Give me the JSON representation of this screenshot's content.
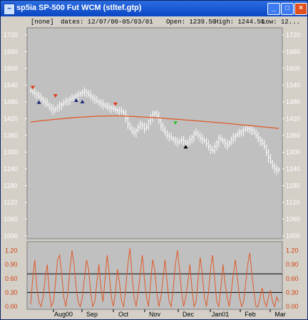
{
  "window": {
    "title": "sp5ia SP-500 Fut   WCM  (stltef.gtp)",
    "buttons": {
      "minimize": "_",
      "maximize": "□",
      "close": "×"
    }
  },
  "infobar": {
    "study": "[none]",
    "dates": "dates: 12/07/00-05/03/01",
    "open": "Open: 1239.50",
    "high": "High: 1244.50",
    "low": "Low: 12..."
  },
  "colors": {
    "panel_bg": "#c0c0c0",
    "price_bars": "#ffffff",
    "moving_average": "#e05a2a",
    "oscillator": "#e05a2a",
    "arrow_red": "#e03a1a",
    "arrow_navy": "#1a2a7a",
    "arrow_green": "#30c030",
    "arrow_black": "#000000"
  },
  "chart_data": [
    {
      "type": "ohlc",
      "y_ticks": [
        1000,
        1060,
        1120,
        1180,
        1240,
        1300,
        1360,
        1420,
        1480,
        1540,
        1600,
        1660,
        1720
      ],
      "ylim": [
        1000,
        1730
      ],
      "x_ticks": [
        "Aug00",
        "Sep",
        "Oct",
        "Nov",
        "Dec",
        "Jan01",
        "Feb",
        "Mar"
      ],
      "closes": [
        1520,
        1515,
        1510,
        1505,
        1498,
        1492,
        1485,
        1478,
        1470,
        1462,
        1455,
        1450,
        1455,
        1462,
        1468,
        1472,
        1478,
        1482,
        1486,
        1490,
        1494,
        1498,
        1502,
        1506,
        1510,
        1514,
        1518,
        1512,
        1506,
        1500,
        1494,
        1488,
        1482,
        1478,
        1474,
        1470,
        1466,
        1462,
        1460,
        1458,
        1455,
        1452,
        1450,
        1448,
        1445,
        1440,
        1420,
        1400,
        1385,
        1375,
        1370,
        1378,
        1390,
        1400,
        1395,
        1385,
        1390,
        1410,
        1425,
        1435,
        1440,
        1430,
        1415,
        1395,
        1380,
        1370,
        1360,
        1355,
        1350,
        1345,
        1340,
        1335,
        1340,
        1345,
        1338,
        1330,
        1335,
        1345,
        1355,
        1365,
        1370,
        1360,
        1350,
        1345,
        1340,
        1330,
        1320,
        1310,
        1305,
        1320,
        1335,
        1350,
        1345,
        1340,
        1330,
        1325,
        1335,
        1345,
        1355,
        1360,
        1365,
        1370,
        1375,
        1380,
        1382,
        1385,
        1380,
        1378,
        1370,
        1360,
        1350,
        1340,
        1330,
        1320,
        1300,
        1280,
        1265,
        1250,
        1240,
        1235,
        1238
      ],
      "moving_average_start": 1408,
      "moving_average_peak": 1430,
      "moving_average_end": 1385,
      "signals": [
        {
          "color": "red",
          "dir": "down",
          "x": 1,
          "y": 1530
        },
        {
          "color": "navy",
          "dir": "up",
          "x": 4,
          "y": 1478
        },
        {
          "color": "red",
          "dir": "down",
          "x": 12,
          "y": 1500
        },
        {
          "color": "navy",
          "dir": "up",
          "x": 22,
          "y": 1485
        },
        {
          "color": "navy",
          "dir": "up",
          "x": 25,
          "y": 1480
        },
        {
          "color": "red",
          "dir": "down",
          "x": 41,
          "y": 1470
        },
        {
          "color": "green",
          "dir": "down",
          "x": 70,
          "y": 1403
        },
        {
          "color": "black",
          "dir": "up",
          "x": 75,
          "y": 1318
        }
      ]
    },
    {
      "type": "line",
      "y_ticks": [
        0.0,
        0.3,
        0.6,
        0.9,
        1.2
      ],
      "ylim": [
        0.0,
        1.3
      ],
      "reference_lines": [
        0.3,
        0.7
      ],
      "values": [
        0.05,
        0.6,
        1.0,
        0.4,
        0.1,
        0.0,
        0.2,
        0.6,
        0.9,
        0.3,
        0.0,
        0.1,
        0.5,
        1.0,
        1.1,
        0.7,
        0.2,
        0.0,
        0.3,
        0.8,
        1.2,
        0.9,
        0.4,
        0.1,
        0.0,
        0.2,
        0.6,
        1.0,
        0.8,
        0.3,
        0.0,
        0.1,
        0.5,
        0.9,
        0.4,
        0.1,
        0.6,
        1.1,
        0.7,
        0.2,
        0.0,
        0.3,
        0.8,
        0.5,
        0.1,
        0.0,
        0.4,
        0.9,
        1.25,
        0.7,
        0.2,
        0.0,
        0.3,
        0.7,
        1.1,
        0.6,
        0.2,
        0.0,
        0.5,
        1.0,
        0.8,
        0.3,
        0.0,
        0.2,
        0.6,
        1.0,
        0.5,
        0.1,
        0.0,
        0.4,
        0.9,
        1.2,
        0.8,
        0.3,
        0.0,
        0.2,
        0.5,
        0.9,
        0.4,
        0.0,
        0.1,
        0.6,
        1.05,
        0.7,
        0.2,
        0.0,
        0.3,
        0.8,
        1.1,
        0.6,
        0.1,
        0.0,
        0.4,
        0.9,
        0.5,
        0.2,
        0.0,
        0.3,
        0.7,
        1.0,
        0.6,
        0.2,
        0.0,
        0.1,
        0.5,
        0.9,
        1.15,
        0.7,
        0.3,
        0.0,
        0.0,
        0.2,
        0.4,
        0.1,
        0.0,
        0.2,
        0.35,
        0.1,
        0.0,
        0.2,
        0.1
      ]
    }
  ]
}
